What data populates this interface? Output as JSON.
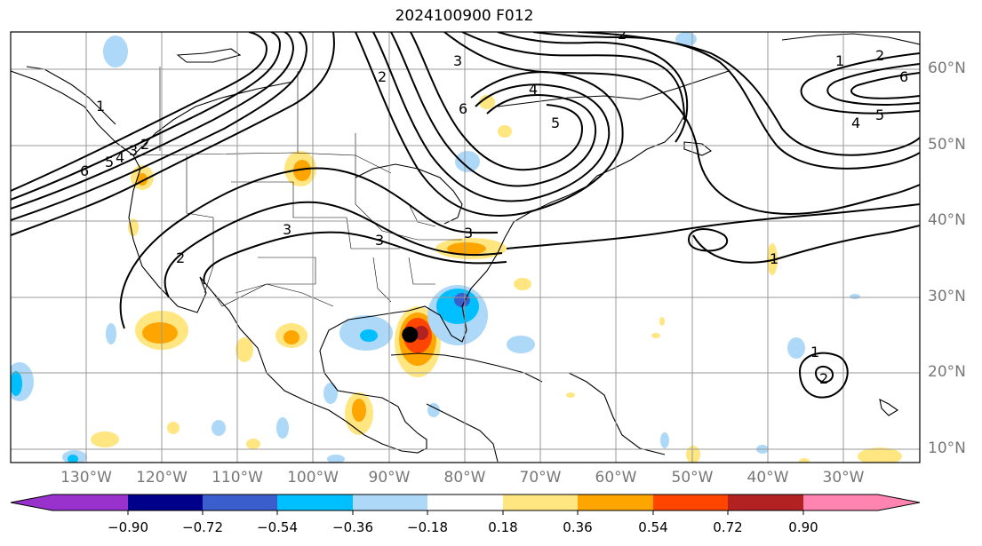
{
  "title": "2024100900 F012",
  "lat_labels": [
    "60°N",
    "50°N",
    "40°N",
    "30°N",
    "20°N",
    "10°N"
  ],
  "lon_labels": [
    "130°W",
    "120°W",
    "110°W",
    "100°W",
    "90°W",
    "80°W",
    "70°W",
    "60°W",
    "50°W",
    "40°W",
    "30°W"
  ],
  "colorbar": {
    "ticks": [
      "−0.90",
      "−0.72",
      "−0.54",
      "−0.36",
      "−0.18",
      "0.18",
      "0.36",
      "0.54",
      "0.72",
      "0.90"
    ],
    "colors": [
      "#9932cc",
      "#00008b",
      "#3a5fcd",
      "#00bfff",
      "#add8f8",
      "#ffffff",
      "#ffe680",
      "#ffa500",
      "#ff4500",
      "#b22222",
      "#ff85b0"
    ]
  },
  "contour_labels": [
    "6",
    "5",
    "4",
    "3",
    "2",
    "1",
    "6",
    "5",
    "4",
    "3",
    "2",
    "3",
    "3",
    "3",
    "2",
    "2",
    "1",
    "2",
    "1",
    "2",
    "5",
    "4",
    "6",
    "1"
  ],
  "storm_marker": {
    "lon": -85.3,
    "lat": 25.0
  }
}
